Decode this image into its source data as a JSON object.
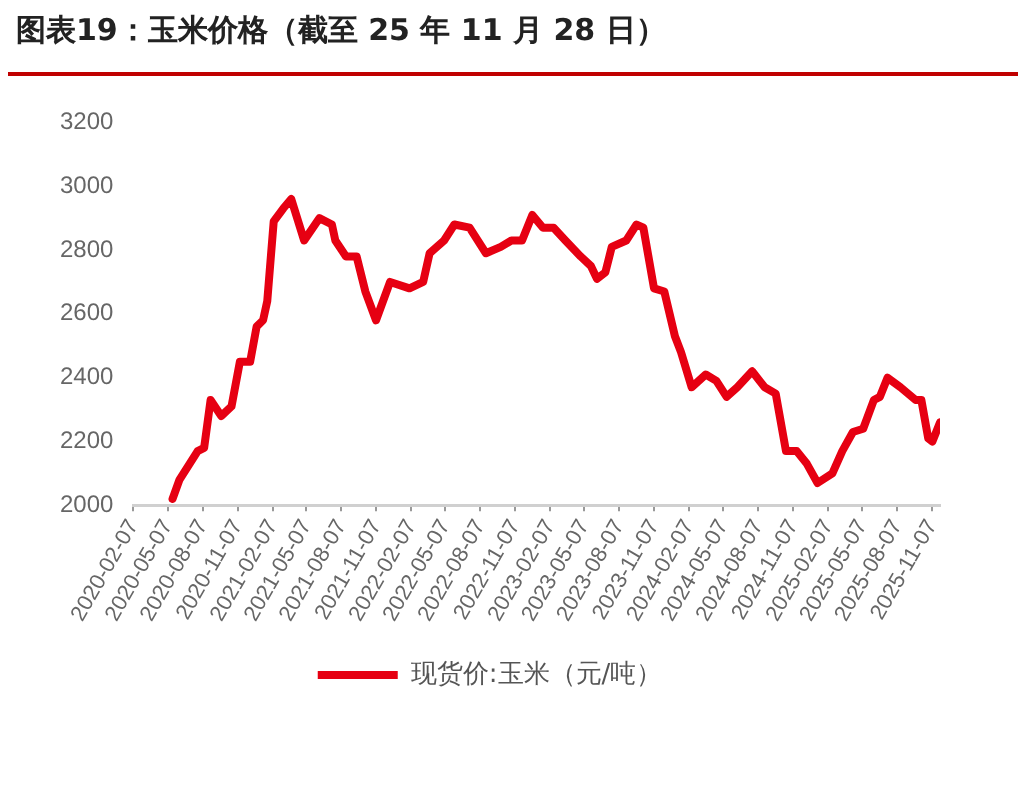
{
  "chart_data": {
    "type": "line",
    "title": "图表19：玉米价格（截至 25 年 11 月 28 日）",
    "x": [
      "2020-05-20",
      "2020-06-07",
      "2020-07-25",
      "2020-08-11",
      "2020-08-28",
      "2020-09-25",
      "2020-10-22",
      "2020-11-13",
      "2020-12-10",
      "2020-12-27",
      "2021-01-13",
      "2021-01-24",
      "2021-02-10",
      "2021-03-07",
      "2021-03-28",
      "2021-05-01",
      "2021-06-10",
      "2021-07-13",
      "2021-07-22",
      "2021-08-19",
      "2021-09-16",
      "2021-10-09",
      "2021-11-06",
      "2021-12-13",
      "2022-02-02",
      "2022-03-10",
      "2022-03-27",
      "2022-05-04",
      "2022-05-31",
      "2022-07-10",
      "2022-08-22",
      "2022-09-30",
      "2022-10-28",
      "2022-11-25",
      "2022-12-22",
      "2023-01-19",
      "2023-02-16",
      "2023-03-19",
      "2023-04-28",
      "2023-05-25",
      "2023-06-10",
      "2023-07-02",
      "2023-07-19",
      "2023-08-26",
      "2023-09-22",
      "2023-10-10",
      "2023-11-07",
      "2023-12-04",
      "2024-01-01",
      "2024-01-17",
      "2024-02-14",
      "2024-03-22",
      "2024-04-19",
      "2024-05-16",
      "2024-06-13",
      "2024-07-22",
      "2024-08-24",
      "2024-09-22",
      "2024-10-19",
      "2024-11-16",
      "2024-12-13",
      "2025-01-10",
      "2025-02-18",
      "2025-03-16",
      "2025-04-13",
      "2025-05-10",
      "2025-06-07",
      "2025-06-23",
      "2025-07-13",
      "2025-08-16",
      "2025-09-25",
      "2025-10-10",
      "2025-10-28",
      "2025-11-08",
      "2025-11-28"
    ],
    "series": [
      {
        "name": "现货价:玉米（元/吨）",
        "color": "#e60012",
        "values": [
          2020,
          2080,
          2170,
          2180,
          2330,
          2280,
          2310,
          2450,
          2450,
          2560,
          2580,
          2640,
          2890,
          2930,
          2960,
          2830,
          2900,
          2880,
          2830,
          2780,
          2780,
          2670,
          2580,
          2700,
          2680,
          2700,
          2790,
          2830,
          2880,
          2870,
          2790,
          2810,
          2830,
          2830,
          2910,
          2870,
          2870,
          2830,
          2780,
          2750,
          2710,
          2730,
          2810,
          2830,
          2880,
          2870,
          2680,
          2670,
          2530,
          2480,
          2370,
          2410,
          2390,
          2340,
          2370,
          2420,
          2370,
          2350,
          2170,
          2170,
          2130,
          2070,
          2100,
          2170,
          2230,
          2240,
          2330,
          2340,
          2400,
          2370,
          2330,
          2330,
          2210,
          2200,
          2260
        ]
      }
    ],
    "xlim": [
      "2020-02-07",
      "2025-11-28"
    ],
    "xticks": [
      "2020-02-07",
      "2020-05-07",
      "2020-08-07",
      "2020-11-07",
      "2021-02-07",
      "2021-05-07",
      "2021-08-07",
      "2021-11-07",
      "2022-02-07",
      "2022-05-07",
      "2022-08-07",
      "2022-11-07",
      "2023-02-07",
      "2023-05-07",
      "2023-08-07",
      "2023-11-07",
      "2024-02-07",
      "2024-05-07",
      "2024-08-07",
      "2024-11-07",
      "2025-02-07",
      "2025-05-07",
      "2025-08-07",
      "2025-11-07"
    ],
    "ylim": [
      2000,
      3200
    ],
    "yticks": [
      2000,
      2200,
      2400,
      2600,
      2800,
      3000,
      3200
    ],
    "grid": false,
    "legend": "bottom",
    "marker": "none",
    "line_style": "solid"
  }
}
